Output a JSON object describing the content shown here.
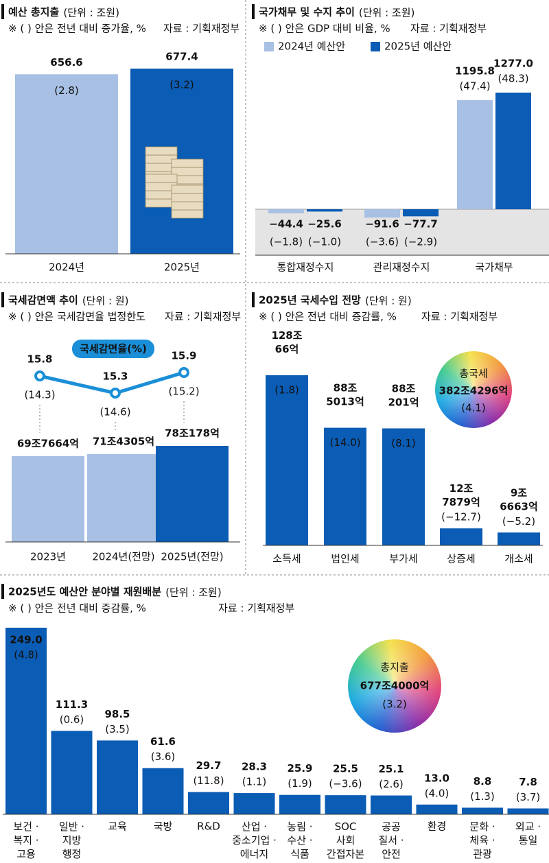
{
  "chart_data": [
    {
      "type": "bar",
      "title": "예산 총지출",
      "unit": "(단위 : 조원)",
      "note": "※ ( ) 안은 전년 대비 증가율, %",
      "source": "자료 : 기획재정부",
      "categories": [
        "2024년",
        "2025년"
      ],
      "values": [
        656.6,
        677.4
      ],
      "colors": [
        "#a7c0e3",
        "#0b5cb4"
      ],
      "rates": [
        2.8,
        3.2
      ],
      "rate_labels": [
        "(2.8)",
        "(3.2)"
      ]
    },
    {
      "type": "grouped_bar",
      "title": "국가채무 및 수지 추이",
      "unit": "(단위 : 조원)",
      "note": "※ ( ) 안은 GDP 대비 비율, %",
      "source": "자료 : 기획재정부",
      "categories": [
        "통합재정수지",
        "관리재정수지",
        "국가채무"
      ],
      "series": [
        {
          "name": "2024년 예산안",
          "color": "#a7c0e3",
          "values": [
            -44.4,
            -91.6,
            1195.8
          ],
          "value_labels": [
            "−44.4",
            "−91.6",
            "1195.8"
          ],
          "rates": [
            -1.8,
            -3.6,
            47.4
          ],
          "rate_labels": [
            "(−1.8)",
            "(−3.6)",
            "(47.4)"
          ]
        },
        {
          "name": "2025년 예산안",
          "color": "#0b5cb4",
          "values": [
            -25.6,
            -77.7,
            1277.0
          ],
          "value_labels": [
            "−25.6",
            "−77.7",
            "1277.0"
          ],
          "rates": [
            -1.0,
            -2.9,
            48.3
          ],
          "rate_labels": [
            "(−1.0)",
            "(−2.9)",
            "(48.3)"
          ]
        }
      ]
    },
    {
      "type": "bar_line",
      "title": "국세감면액 추이",
      "unit": "(단위 : 원)",
      "note": "※ ( ) 안은 국세감면율 법정한도",
      "source": "자료 : 기획재정부",
      "categories": [
        "2023년",
        "2024년(전망)",
        "2025년(전망)"
      ],
      "values": [
        697664,
        714305,
        780178
      ],
      "value_labels": [
        "69조7664억",
        "71조4305억",
        "78조178억"
      ],
      "colors": [
        "#a7c0e3",
        "#a7c0e3",
        "#0b5cb4"
      ],
      "line": {
        "name": "국세감면율(%)",
        "color": "#1a8fd8",
        "values": [
          15.8,
          15.3,
          15.9
        ],
        "limits": [
          14.3,
          14.6,
          15.2
        ],
        "limit_labels": [
          "(14.3)",
          "(14.6)",
          "(15.2)"
        ]
      }
    },
    {
      "type": "bar",
      "title": "2025년 국세수입 전망",
      "unit": "(단위 : 원)",
      "note": "※ ( ) 안은 전년 대비 증감률, %",
      "source": "자료 : 기획재정부",
      "categories": [
        "소득세",
        "법인세",
        "부가세",
        "상증세",
        "개소세"
      ],
      "values": [
        1280066,
        885013,
        880201,
        127879,
        96663
      ],
      "value_labels": [
        "128조\n66억",
        "88조\n5013억",
        "88조\n201억",
        "12조\n7879억",
        "9조\n6663억"
      ],
      "color": "#0b5cb4",
      "rates": [
        1.8,
        14.0,
        8.1,
        -12.7,
        -5.2
      ],
      "rate_labels": [
        "(1.8)",
        "(14.0)",
        "(8.1)",
        "(−12.7)",
        "(−5.2)"
      ],
      "total": {
        "name": "총국세",
        "value": 3824296,
        "value_label": "382조4296억",
        "rate": 4.1,
        "rate_label": "(4.1)"
      }
    },
    {
      "type": "bar",
      "title": "2025년도 예산안 분야별 재원배분",
      "unit": "(단위 : 조원)",
      "note": "※ ( ) 안은 전년 대비 증감률, %",
      "source": "자료 : 기획재정부",
      "categories": [
        "보건 ·\n복지 ·\n고용",
        "일반 ·\n지방\n행정",
        "교육",
        "국방",
        "R&D",
        "산업 ·\n중소기업 ·\n에너지",
        "농림 ·\n수산 ·\n식품",
        "SOC\n사회\n간접자본",
        "공공\n질서 ·\n안전",
        "환경",
        "문화 ·\n체육 ·\n관광",
        "외교 ·\n통일"
      ],
      "values": [
        249.0,
        111.3,
        98.5,
        61.6,
        29.7,
        28.3,
        25.9,
        25.5,
        25.1,
        13.0,
        8.8,
        7.8
      ],
      "value_labels": [
        "249.0",
        "111.3",
        "98.5",
        "61.6",
        "29.7",
        "28.3",
        "25.9",
        "25.5",
        "25.1",
        "13.0",
        "8.8",
        "7.8"
      ],
      "color": "#0b5cb4",
      "rates": [
        4.8,
        0.6,
        3.5,
        3.6,
        11.8,
        1.1,
        1.9,
        -3.6,
        2.6,
        4.0,
        1.3,
        3.7
      ],
      "rate_labels": [
        "(4.8)",
        "(0.6)",
        "(3.5)",
        "(3.6)",
        "(11.8)",
        "(1.1)",
        "(1.9)",
        "(−3.6)",
        "(2.6)",
        "(4.0)",
        "(1.3)",
        "(3.7)"
      ],
      "total": {
        "name": "총지출",
        "value": 677.4,
        "value_label": "677조4000억",
        "rate": 3.2,
        "rate_label": "(3.2)"
      }
    }
  ]
}
